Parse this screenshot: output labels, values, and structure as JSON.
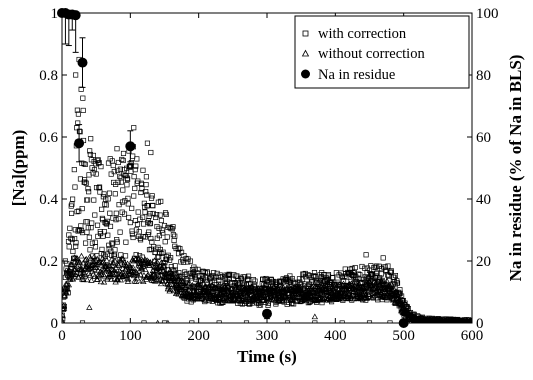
{
  "chart_data": {
    "type": "scatter",
    "xlabel": "Time (s)",
    "ylabel_left": "[Na](ppm)",
    "ylabel_right": "Na in residue (% of Na in BLS)",
    "xlim": [
      0,
      600
    ],
    "ylim_left": [
      0,
      1
    ],
    "ylim_right": [
      0,
      100
    ],
    "x_ticks": [
      "0",
      "100",
      "200",
      "300",
      "400",
      "500",
      "600"
    ],
    "y_ticks_left": [
      "0",
      "0.2",
      "0.4",
      "0.6",
      "0.8",
      "1"
    ],
    "y_ticks_right": [
      "0",
      "20",
      "40",
      "60",
      "80",
      "100"
    ],
    "grid": false,
    "legend_position": "top-right",
    "series": [
      {
        "name": "with correction",
        "marker": "square-open",
        "axis": "left",
        "profile": [
          [
            0,
            0.0
          ],
          [
            5,
            0.12
          ],
          [
            10,
            0.2
          ],
          [
            15,
            0.3
          ],
          [
            20,
            0.45
          ],
          [
            25,
            0.55
          ],
          [
            30,
            0.52
          ],
          [
            40,
            0.42
          ],
          [
            50,
            0.36
          ],
          [
            60,
            0.35
          ],
          [
            70,
            0.36
          ],
          [
            80,
            0.38
          ],
          [
            90,
            0.4
          ],
          [
            100,
            0.4
          ],
          [
            110,
            0.37
          ],
          [
            120,
            0.33
          ],
          [
            130,
            0.3
          ],
          [
            140,
            0.28
          ],
          [
            150,
            0.25
          ],
          [
            160,
            0.22
          ],
          [
            170,
            0.18
          ],
          [
            180,
            0.15
          ],
          [
            190,
            0.13
          ],
          [
            200,
            0.12
          ],
          [
            250,
            0.11
          ],
          [
            300,
            0.1
          ],
          [
            350,
            0.11
          ],
          [
            400,
            0.12
          ],
          [
            450,
            0.13
          ],
          [
            480,
            0.13
          ],
          [
            490,
            0.1
          ],
          [
            500,
            0.05
          ],
          [
            510,
            0.02
          ],
          [
            530,
            0.005
          ],
          [
            600,
            0.0
          ]
        ],
        "outliers": [
          [
            20,
            0.8
          ],
          [
            25,
            0.85
          ],
          [
            105,
            0.63
          ],
          [
            125,
            0.58
          ],
          [
            130,
            0.55
          ],
          [
            5,
            0.2
          ],
          [
            165,
            0.28
          ],
          [
            445,
            0.22
          ],
          [
            470,
            0.21
          ],
          [
            30,
            0.0
          ],
          [
            120,
            0.0
          ],
          [
            150,
            0.0
          ],
          [
            190,
            0.0
          ],
          [
            230,
            0.0
          ],
          [
            270,
            0.0
          ],
          [
            330,
            0.0
          ],
          [
            370,
            0.0
          ],
          [
            410,
            0.0
          ],
          [
            450,
            0.0
          ],
          [
            480,
            0.0
          ]
        ]
      },
      {
        "name": "without correction",
        "marker": "triangle-open",
        "axis": "left",
        "profile": [
          [
            0,
            0.0
          ],
          [
            5,
            0.1
          ],
          [
            10,
            0.15
          ],
          [
            20,
            0.18
          ],
          [
            30,
            0.18
          ],
          [
            60,
            0.17
          ],
          [
            100,
            0.17
          ],
          [
            140,
            0.17
          ],
          [
            150,
            0.15
          ],
          [
            160,
            0.13
          ],
          [
            180,
            0.11
          ],
          [
            200,
            0.1
          ],
          [
            300,
            0.09
          ],
          [
            400,
            0.1
          ],
          [
            480,
            0.11
          ],
          [
            490,
            0.08
          ],
          [
            500,
            0.04
          ],
          [
            510,
            0.015
          ],
          [
            530,
            0.003
          ],
          [
            600,
            0.0
          ]
        ],
        "outliers": [
          [
            40,
            0.05
          ],
          [
            140,
            0.0
          ],
          [
            155,
            0.0
          ],
          [
            300,
            0.02
          ],
          [
            370,
            0.02
          ]
        ]
      },
      {
        "name": "Na in residue",
        "marker": "circle-filled",
        "axis": "right",
        "points": [
          {
            "x": 0,
            "y": 100,
            "err": 0
          },
          {
            "x": 5,
            "y": 100,
            "err": 10
          },
          {
            "x": 10,
            "y": 99.5,
            "err": 10
          },
          {
            "x": 15,
            "y": 99.5,
            "err": 5
          },
          {
            "x": 20,
            "y": 99.3,
            "err": 12
          },
          {
            "x": 25,
            "y": 58,
            "err": 6
          },
          {
            "x": 30,
            "y": 84,
            "err": 8
          },
          {
            "x": 100,
            "y": 57,
            "err": 5
          },
          {
            "x": 300,
            "y": 3,
            "err": 0
          },
          {
            "x": 500,
            "y": 0,
            "err": 0
          }
        ]
      }
    ]
  }
}
